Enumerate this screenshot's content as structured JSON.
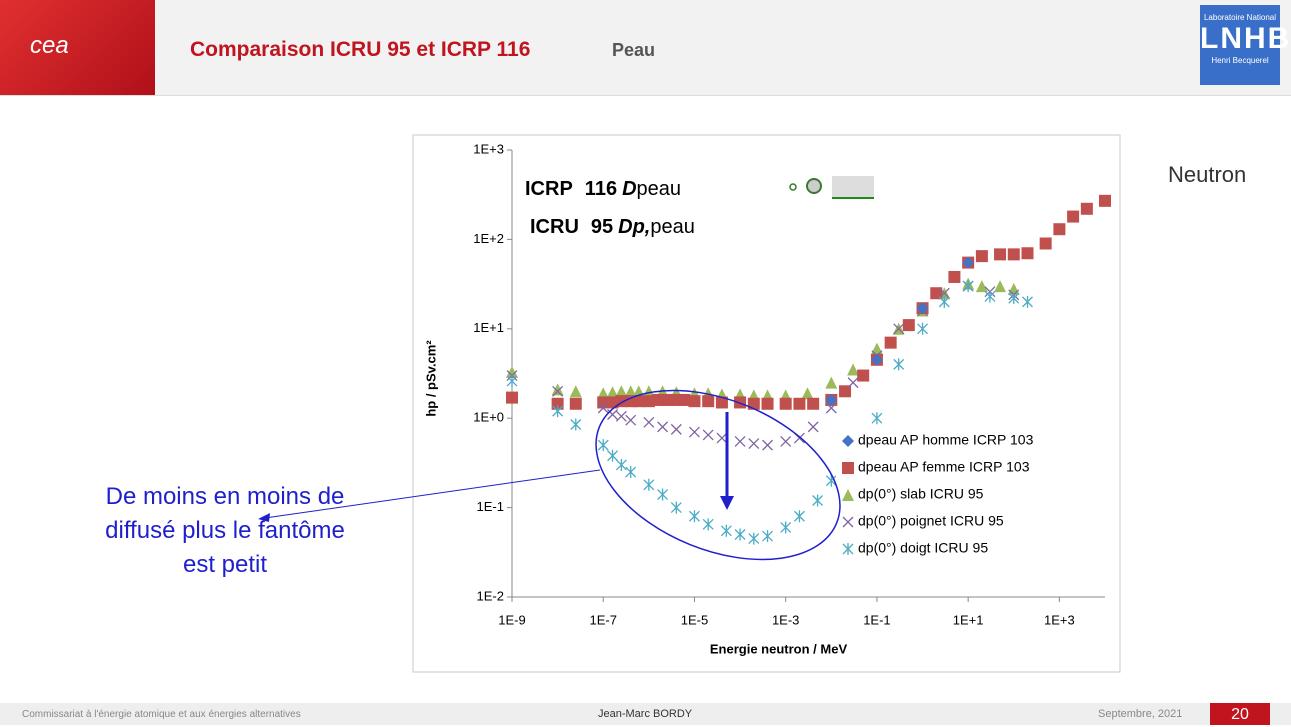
{
  "header": {
    "logo": "cea",
    "title": "Comparaison ICRU 95 et ICRP 116",
    "subtitle": "Peau",
    "lab_top": "Laboratoire National",
    "lab_logo": "LNHB",
    "lab_bottom": "Henri Becquerel"
  },
  "side_label": "Neutron",
  "annotation": [
    "De moins en moins de",
    "diffusé plus le fantôme",
    "est petit"
  ],
  "footer": {
    "org": "Commissariat à l'énergie atomique et aux énergies alternatives",
    "author": "Jean-Marc BORDY",
    "date": "Septembre, 2021",
    "page": "20"
  },
  "chart_data": {
    "type": "scatter",
    "x_label": "Energie neutron / MeV",
    "y_label": "hp  /  pSv.cm²",
    "inset": {
      "line1": [
        "ICRP",
        "116",
        "D",
        "peau"
      ],
      "line2": [
        "ICRU",
        "95",
        "Dp,",
        "peau"
      ]
    },
    "xscale": "log",
    "yscale": "log",
    "xlim": [
      1e-09,
      10000
    ],
    "ylim": [
      0.01,
      1000
    ],
    "xticks": [
      {
        "value": 1e-09,
        "label": "1E-9"
      },
      {
        "value": 1e-07,
        "label": "1E-7"
      },
      {
        "value": 1e-05,
        "label": "1E-5"
      },
      {
        "value": 0.001,
        "label": "1E-3"
      },
      {
        "value": 0.1,
        "label": "1E-1"
      },
      {
        "value": 10,
        "label": "1E+1"
      },
      {
        "value": 1000,
        "label": "1E+3"
      }
    ],
    "yticks": [
      {
        "value": 0.01,
        "label": "1E-2"
      },
      {
        "value": 0.1,
        "label": "1E-1"
      },
      {
        "value": 1,
        "label": "1E+0"
      },
      {
        "value": 10,
        "label": "1E+1"
      },
      {
        "value": 100,
        "label": "1E+2"
      },
      {
        "value": 1000,
        "label": "1E+3"
      }
    ],
    "legend": "right",
    "grid": false,
    "series": [
      {
        "name": "dpeau AP homme ICRP 103",
        "color": "#4472c4",
        "marker": "diamond",
        "x": [
          0.01,
          0.1,
          1,
          10
        ],
        "values": [
          1.6,
          4.5,
          17,
          55
        ]
      },
      {
        "name": "dpeau AP femme ICRP 103",
        "color": "#c0504d",
        "marker": "square",
        "x": [
          1e-09,
          1e-08,
          2.5e-08,
          1e-07,
          1.6e-07,
          2.5e-07,
          4e-07,
          6e-07,
          1e-06,
          1.6e-06,
          2.5e-06,
          4e-06,
          6e-06,
          1e-05,
          2e-05,
          4e-05,
          0.0001,
          0.0002,
          0.0004,
          0.001,
          0.002,
          0.004,
          0.01,
          0.02,
          0.05,
          0.1,
          0.2,
          0.5,
          1,
          2,
          5,
          10,
          20,
          50,
          100,
          200,
          500,
          1000,
          2000,
          4000,
          10000
        ],
        "values": [
          1.7,
          1.45,
          1.45,
          1.5,
          1.5,
          1.55,
          1.55,
          1.55,
          1.55,
          1.6,
          1.6,
          1.6,
          1.6,
          1.55,
          1.55,
          1.5,
          1.5,
          1.45,
          1.45,
          1.45,
          1.45,
          1.45,
          1.6,
          2,
          3,
          4.5,
          7,
          11,
          17,
          25,
          38,
          55,
          65,
          68,
          68,
          70,
          90,
          130,
          180,
          220,
          270
        ]
      },
      {
        "name": "dp(0°) slab ICRU 95",
        "color": "#9bbb59",
        "marker": "triangle",
        "x": [
          1e-09,
          1e-08,
          2.5e-08,
          1e-07,
          1.6e-07,
          2.5e-07,
          4e-07,
          6e-07,
          1e-06,
          2e-06,
          4e-06,
          1e-05,
          2e-05,
          4e-05,
          0.0001,
          0.0002,
          0.0004,
          0.001,
          0.003,
          0.01,
          0.03,
          0.1,
          0.3,
          1,
          3,
          10,
          20,
          50,
          100
        ],
        "values": [
          3.3,
          2.1,
          2,
          1.9,
          1.95,
          2,
          2,
          2,
          2,
          2,
          1.95,
          1.9,
          1.9,
          1.85,
          1.85,
          1.8,
          1.8,
          1.8,
          1.9,
          2.5,
          3.5,
          6,
          10,
          16,
          25,
          32,
          30,
          30,
          28
        ]
      },
      {
        "name": "dp(0°) poignet ICRU 95",
        "color": "#8064a2",
        "marker": "cross",
        "x": [
          1e-09,
          1e-08,
          1e-07,
          1.6e-07,
          2.5e-07,
          4e-07,
          1e-06,
          2e-06,
          4e-06,
          1e-05,
          2e-05,
          4e-05,
          0.0001,
          0.0002,
          0.0004,
          0.001,
          0.002,
          0.004,
          0.01,
          0.03,
          0.1,
          0.3,
          1,
          3,
          10,
          30,
          100
        ],
        "values": [
          3,
          2,
          1.3,
          1.1,
          1.05,
          0.95,
          0.9,
          0.8,
          0.75,
          0.7,
          0.65,
          0.6,
          0.55,
          0.52,
          0.5,
          0.55,
          0.6,
          0.8,
          1.3,
          2.5,
          5,
          10,
          16,
          25,
          30,
          26,
          24
        ]
      },
      {
        "name": "dp(0°) doigt ICRU 95",
        "color": "#4bacc6",
        "marker": "star",
        "x": [
          1e-09,
          1e-08,
          2.5e-08,
          1e-07,
          1.6e-07,
          2.5e-07,
          4e-07,
          1e-06,
          2e-06,
          4e-06,
          1e-05,
          2e-05,
          5e-05,
          0.0001,
          0.0002,
          0.0004,
          0.001,
          0.002,
          0.005,
          0.01,
          0.02,
          0.04,
          0.1,
          0.3,
          1,
          3,
          10,
          30,
          100,
          200
        ],
        "values": [
          2.6,
          1.2,
          0.85,
          0.5,
          0.38,
          0.3,
          0.25,
          0.18,
          0.14,
          0.1,
          0.08,
          0.065,
          0.055,
          0.05,
          0.045,
          0.048,
          0.06,
          0.08,
          0.12,
          0.2,
          0.35,
          0.55,
          1,
          4,
          10,
          20,
          30,
          23,
          22,
          20
        ]
      }
    ]
  }
}
